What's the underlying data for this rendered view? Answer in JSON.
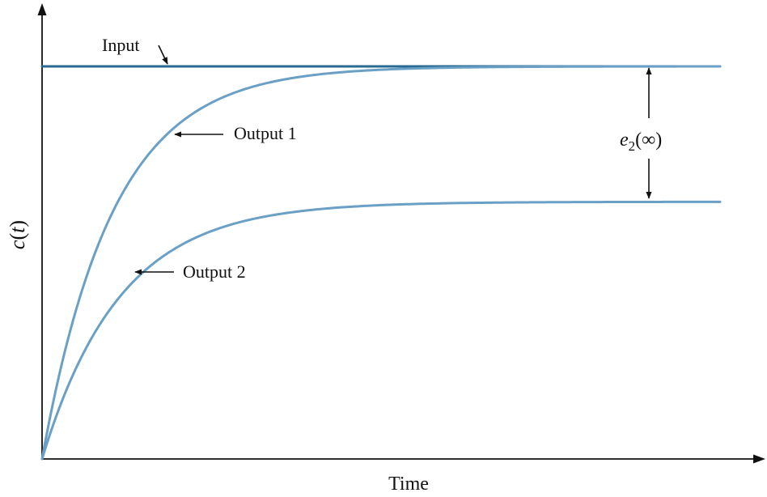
{
  "chart_data": {
    "type": "line",
    "title": "",
    "xlabel": "Time",
    "ylabel_main": "c",
    "ylabel_paren_open": "(",
    "ylabel_var": "t",
    "ylabel_paren_close": ")",
    "xlim": [
      0,
      10
    ],
    "ylim": [
      0,
      1
    ],
    "grid": false,
    "legend": "none",
    "colors": {
      "input": "#2a6a92",
      "output": "#6aa0c6",
      "axis": "#111111"
    },
    "series": [
      {
        "name": "Input",
        "kind": "step",
        "final": 1.0,
        "tau": 0
      },
      {
        "name": "Output 1",
        "kind": "first-order",
        "final": 1.0,
        "tau": 1.05
      },
      {
        "name": "Output 2",
        "kind": "first-order",
        "final": 0.655,
        "tau": 1.15
      }
    ],
    "annotations": {
      "input_label": "Input",
      "output1_label": "Output 1",
      "output2_label": "Output 2",
      "error_label_var": "e",
      "error_label_sub": "2",
      "error_label_arg": "(∞)"
    }
  }
}
